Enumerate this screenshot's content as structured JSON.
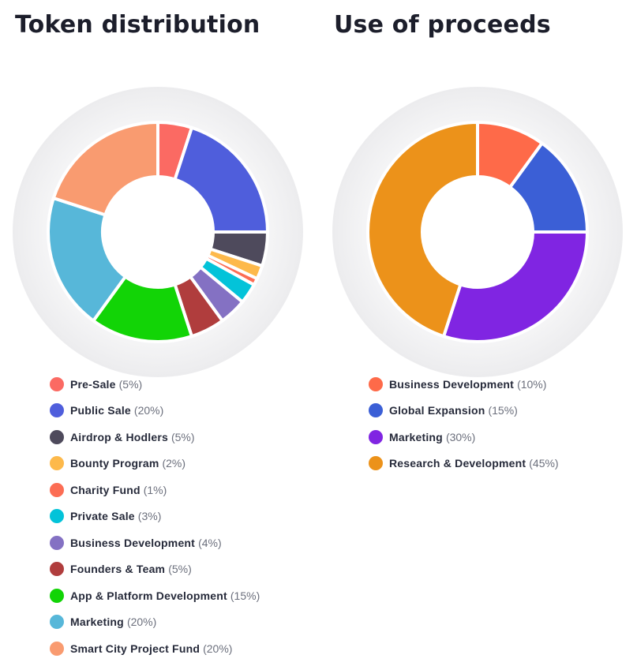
{
  "chart_data": [
    {
      "type": "pie",
      "title": "Token distribution",
      "categories": [
        "Pre-Sale",
        "Public Sale",
        "Airdrop & Hodlers",
        "Bounty Program",
        "Charity Fund",
        "Private Sale",
        "Business Development",
        "Founders & Team",
        "App & Platform Development",
        "Marketing",
        "Smart City Project Fund"
      ],
      "values": [
        5,
        20,
        5,
        2,
        1,
        3,
        4,
        5,
        15,
        20,
        20
      ],
      "labels": [
        "(5%)",
        "(20%)",
        "(5%)",
        "(2%)",
        "(1%)",
        "(3%)",
        "(4%)",
        "(5%)",
        "(15%)",
        "(20%)",
        "(20%)"
      ],
      "colors": [
        "#fb6a63",
        "#4f5edc",
        "#4e4a5c",
        "#fdb94b",
        "#fc6d54",
        "#03c3d9",
        "#8471c3",
        "#b03d3d",
        "#12d406",
        "#57b7d9",
        "#f99b70"
      ],
      "legend_position": "bottom"
    },
    {
      "type": "pie",
      "title": "Use of proceeds",
      "categories": [
        "Business Development",
        "Global Expansion",
        "Marketing",
        "Research & Development"
      ],
      "values": [
        10,
        15,
        30,
        45
      ],
      "labels": [
        "(10%)",
        "(15%)",
        "(30%)",
        "(45%)"
      ],
      "colors": [
        "#fe6a49",
        "#3b5fd6",
        "#8025e2",
        "#ec921a"
      ],
      "legend_position": "bottom"
    }
  ]
}
